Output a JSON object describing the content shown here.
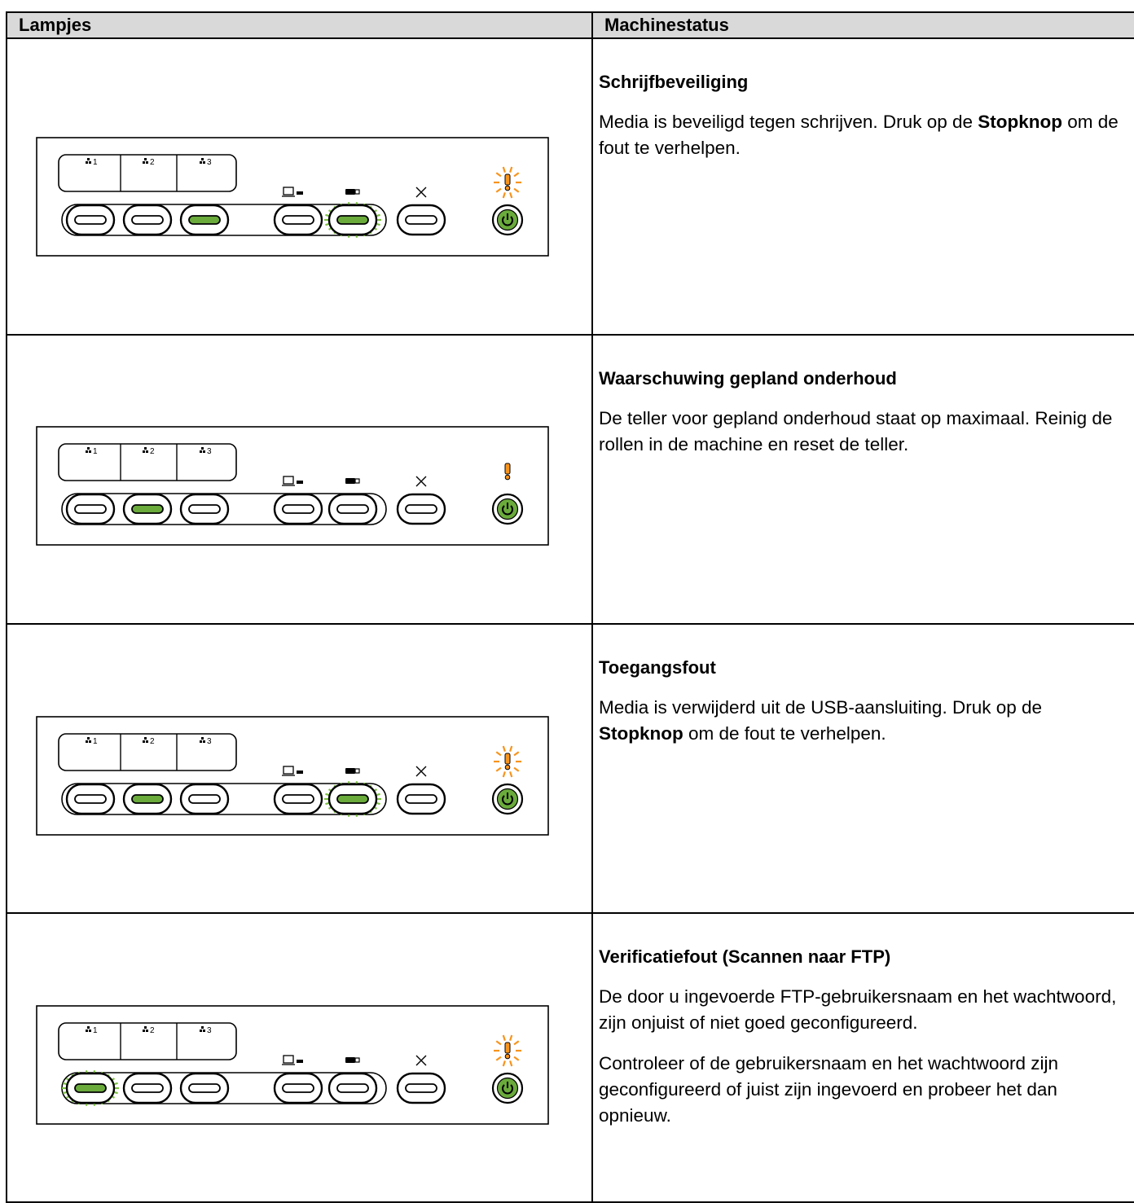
{
  "header": {
    "left": "Lampjes",
    "right": "Machinestatus"
  },
  "panel_labels": [
    "1",
    "2",
    "3"
  ],
  "rows": [
    {
      "title": "Schrijfbeveiliging",
      "paragraphs": [
        [
          "Media is beveiligd tegen schrijven. Druk op de ",
          {
            "bold": "Stopknop"
          },
          " om de fout te verhelpen."
        ]
      ]
    },
    {
      "title": "Waarschuwing gepland onderhoud",
      "paragraphs": [
        [
          "De teller voor gepland onderhoud staat op maximaal. Reinig de rollen in de machine en reset de teller."
        ]
      ]
    },
    {
      "title": "Toegangsfout",
      "paragraphs": [
        [
          "Media is verwijderd uit de USB-aansluiting. Druk op de ",
          {
            "bold": "Stopknop"
          },
          " om de fout te verhelpen."
        ]
      ]
    },
    {
      "title": "Verificatiefout (Scannen naar FTP)",
      "paragraphs": [
        [
          "De door u ingevoerde FTP-gebruikersnaam en het wachtwoord, zijn onjuist of niet goed geconfigureerd."
        ],
        [
          "Controleer of de gebruikersnaam en het wachtwoord zijn geconfigureerd of juist zijn ingevoerd en probeer het dan opnieuw."
        ]
      ]
    }
  ]
}
